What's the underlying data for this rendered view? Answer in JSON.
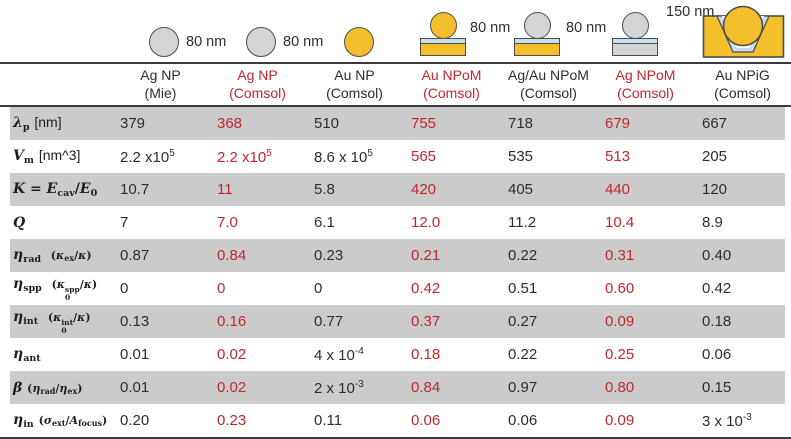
{
  "palette": {
    "accent_red": "#C1272D",
    "row_stripe_gray": "#CBCBCB",
    "gold": "#F3BF2B",
    "silver_gray": "#D4D4D4",
    "spacer_blue": "#C9DDF0",
    "outline": "#4d4d4d",
    "text": "#2d2d2d"
  },
  "icons": {
    "size_labels": [
      "80 nm",
      "80 nm",
      "80 nm",
      "80 nm",
      "150 nm"
    ],
    "shapes": [
      "silver-nanoparticle-sphere",
      "silver-nanoparticle-sphere",
      "gold-nanoparticle-sphere",
      "gold-sphere-on-gold-mirror",
      "silver-sphere-on-gold-mirror",
      "silver-sphere-on-silver-mirror",
      "gold-sphere-in-groove"
    ]
  },
  "header": {
    "columns": [
      {
        "line1": "Ag NP",
        "line2": "(Mie)",
        "red": false
      },
      {
        "line1": "Ag NP",
        "line2": "(Comsol)",
        "red": true
      },
      {
        "line1": "Au NP",
        "line2": "(Comsol)",
        "red": false
      },
      {
        "line1": "Au NPoM",
        "line2": "(Comsol)",
        "red": true
      },
      {
        "line1": "Ag/Au NPoM",
        "line2": "(Comsol)",
        "red": false
      },
      {
        "line1": "Ag NPoM",
        "line2": "(Comsol)",
        "red": true
      },
      {
        "line1": "Au NPiG",
        "line2": "(Comsol)",
        "red": false
      }
    ]
  },
  "table": {
    "rows": [
      {
        "label_text": "lambda_p [nm]",
        "label_html": "<i>λ</i><sub>p</sub> <span class=\"unit\">[nm]</span>",
        "values": [
          "379",
          "368",
          "510",
          "755",
          "718",
          "679",
          "667"
        ]
      },
      {
        "label_text": "V_m [nm^3]",
        "label_html": "<i>V</i><sub>m</sub> <span class=\"unit\">[nm^3]</span>",
        "values": [
          "2.2 x10<sup>5</sup>",
          "2.2 x10<sup>5</sup>",
          "8.6 x 10<sup>5</sup>",
          "565",
          "535",
          "513",
          "205"
        ]
      },
      {
        "label_text": "K = E_cav/E_0",
        "label_html": "<i>K</i> = <i>E</i><sub>cav</sub>/<i>E</i><sub>0</sub>",
        "values": [
          "10.7",
          "11",
          "5.8",
          "420",
          "405",
          "440",
          "120"
        ]
      },
      {
        "label_text": "Q",
        "label_html": "<i>Q</i>",
        "values": [
          "7",
          "7.0",
          "6.1",
          "12.0",
          "11.2",
          "10.4",
          "8.9"
        ]
      },
      {
        "label_text": "eta_rad (kappa_ex/kappa)",
        "label_html": "<i>η</i><sub>rad</sub>&nbsp; <span class=\"paren\">(<i>κ</i><sub>ex</sub>/<i>κ</i>)</span>",
        "values": [
          "0.87",
          "0.84",
          "0.23",
          "0.21",
          "0.22",
          "0.31",
          "0.40"
        ]
      },
      {
        "label_text": "eta_spp (kappa_0^spp/kappa)",
        "label_html": "<i>η</i><sub>spp</sub>&nbsp; <span class=\"paren\">(<i>κ</i><span class=\"ss\"><span>spp</span><span>0</span></span>/<i>κ</i>)</span>",
        "values": [
          "0",
          "0",
          "0",
          "0.42",
          "0.51",
          "0.60",
          "0.42"
        ]
      },
      {
        "label_text": "eta_int (kappa_0^int/kappa)",
        "label_html": "<i>η</i><sub>int</sub>&nbsp; <span class=\"paren\">(<i>κ</i><span class=\"ss\"><span>int</span><span>0</span></span>/<i>κ</i>)</span>",
        "values": [
          "0.13",
          "0.16",
          "0.77",
          "0.37",
          "0.27",
          "0.09",
          "0.18"
        ]
      },
      {
        "label_text": "eta_ant",
        "label_html": "<i>η</i><sub>ant</sub>",
        "values": [
          "0.01",
          "0.02",
          "4 x 10<sup>-4</sup>",
          "0.18",
          "0.22",
          "0.25",
          "0.06"
        ]
      },
      {
        "label_text": "beta (eta_rad/eta_ex)",
        "label_html": "<i>β</i> <span class=\"paren\">(<i>η</i><sub>rad</sub>/<i>η</i><sub>ex</sub>)</span>",
        "values": [
          "0.01",
          "0.02",
          "2 x 10<sup>-3</sup>",
          "0.84",
          "0.97",
          "0.80",
          "0.15"
        ]
      },
      {
        "label_text": "eta_in (sigma_ext/A_focus)",
        "label_html": "<i>η</i><sub>in</sub> <span class=\"paren\">(<i>σ</i><sub>ext</sub>/<i>A</i><sub>focus</sub>)</span>",
        "values": [
          "0.20",
          "0.23",
          "0.11",
          "0.06",
          "0.06",
          "0.09",
          "3 x 10<sup>-3</sup>"
        ]
      }
    ]
  }
}
